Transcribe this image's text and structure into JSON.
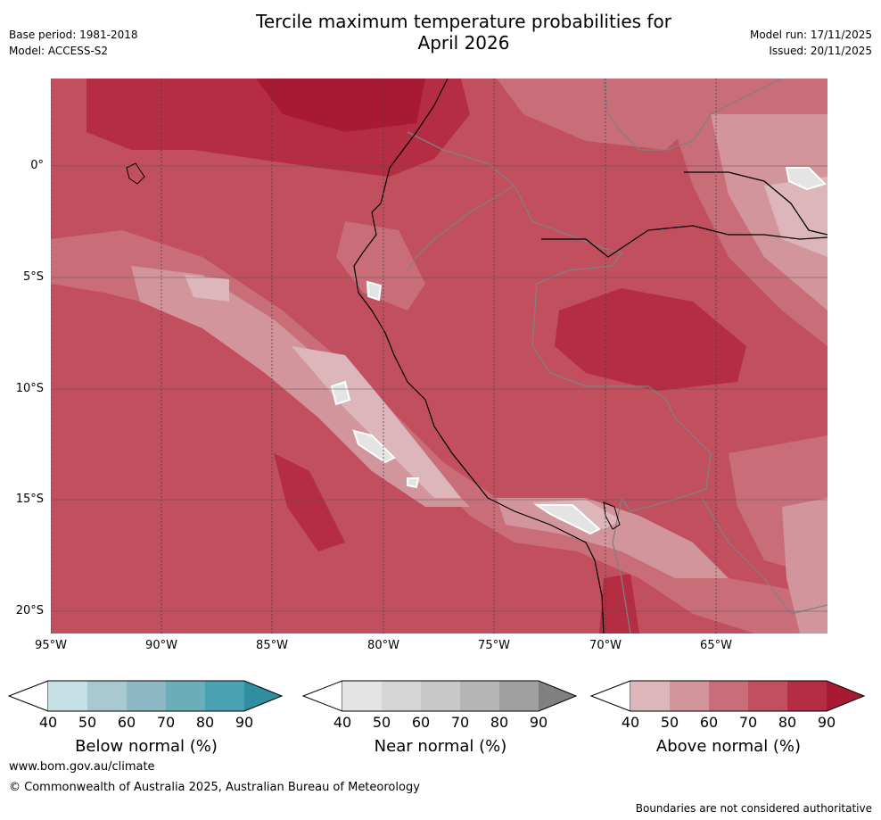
{
  "title_line1": "Tercile maximum temperature probabilities for",
  "title_line2": "April 2026",
  "meta": {
    "base_period": "Base period: 1981-2018",
    "model": "Model: ACCESS-S2",
    "model_run": "Model run: 17/11/2025",
    "issued": "Issued: 20/11/2025"
  },
  "longitude_ticks": [
    "95°W",
    "90°W",
    "85°W",
    "80°W",
    "75°W",
    "70°W",
    "65°W"
  ],
  "latitude_ticks": [
    "0°",
    "5°S",
    "10°S",
    "15°S",
    "20°S"
  ],
  "colorbars": [
    {
      "title": "Below normal (%)",
      "ticks": [
        "40",
        "50",
        "60",
        "70",
        "80",
        "90"
      ],
      "colors": [
        "#c7e0e5",
        "#a8c9cf",
        "#8bb8c2",
        "#6baeb9",
        "#4aa2b1",
        "#2f8fa1"
      ]
    },
    {
      "title": "Near normal (%)",
      "ticks": [
        "40",
        "50",
        "60",
        "70",
        "80",
        "90"
      ],
      "colors": [
        "#e4e4e4",
        "#d6d6d6",
        "#c8c8c8",
        "#b5b5b5",
        "#a0a0a0",
        "#808080"
      ]
    },
    {
      "title": "Above normal (%)",
      "ticks": [
        "40",
        "50",
        "60",
        "70",
        "80",
        "90"
      ],
      "colors": [
        "#ddb6bb",
        "#d3959c",
        "#c96e79",
        "#c14f5e",
        "#b42d43",
        "#a81a33"
      ]
    }
  ],
  "footer": {
    "url": "www.bom.gov.au/climate",
    "copyright": "© Commonwealth of Australia 2025, Australian Bureau of Meteorology",
    "note": "Boundaries are not considered authoritative"
  }
}
